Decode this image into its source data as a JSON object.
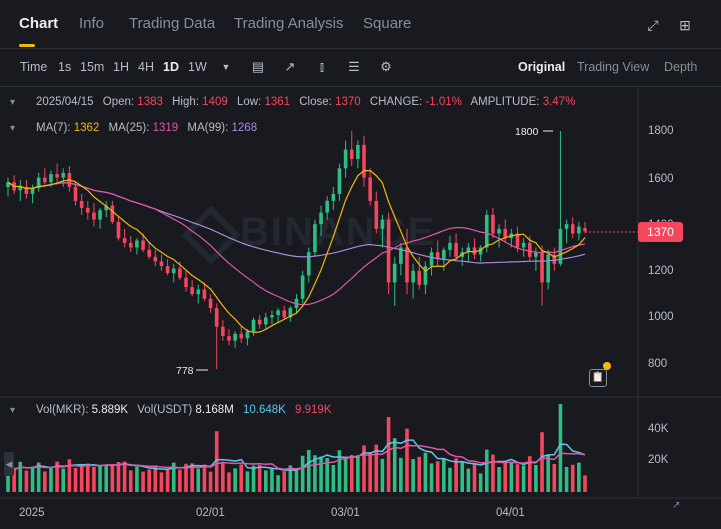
{
  "tabs": [
    {
      "label": "Chart",
      "active": true
    },
    {
      "label": "Info"
    },
    {
      "label": "Trading Data"
    },
    {
      "label": "Trading Analysis"
    },
    {
      "label": "Square"
    }
  ],
  "tab_icons": [
    "expand-icon",
    "grid-icon"
  ],
  "toolbar": {
    "time_label": "Time",
    "intervals": [
      "1s",
      "15m",
      "1H",
      "4H",
      "1D",
      "1W"
    ],
    "active_interval": "1D",
    "views": [
      "Original",
      "Trading View",
      "Depth"
    ],
    "active_view": "Original"
  },
  "ohlc": {
    "date": "2025/04/15",
    "open_label": "Open:",
    "open": "1383",
    "high_label": "High:",
    "high": "1409",
    "low_label": "Low:",
    "low": "1361",
    "close_label": "Close:",
    "close": "1370",
    "change_label": "CHANGE:",
    "change": "-1.01%",
    "amplitude_label": "AMPLITUDE:",
    "amplitude": "3.47%"
  },
  "ma": {
    "ma7_label": "MA(7):",
    "ma7": "1362",
    "ma25_label": "MA(25):",
    "ma25": "1319",
    "ma99_label": "MA(99):",
    "ma99": "1268"
  },
  "volume": {
    "label": "Vol(MKR):",
    "value": "5.889K",
    "usdt_label": "Vol(USDT)",
    "usdt": "8.168M",
    "ma1": "10.648K",
    "ma2": "9.919K"
  },
  "watermark": "BINANCE",
  "price_axis": [
    "1800",
    "1600",
    "1400",
    "1200",
    "1000",
    "800"
  ],
  "volume_axis": [
    "40K",
    "20K"
  ],
  "date_axis": [
    "2025",
    "02/01",
    "03/01",
    "04/01"
  ],
  "current_price": "1370",
  "high_marker": "1800",
  "low_marker": "778",
  "colors": {
    "up": "#2ebd85",
    "down": "#f6465d",
    "ma7": "#f0b90b",
    "ma25": "#e056a8",
    "ma99": "#a78bdc"
  },
  "chart_data": {
    "type": "candlestick",
    "price_range": [
      700,
      1900
    ],
    "ohlc_series": [
      [
        1560,
        1600,
        1520,
        1580
      ],
      [
        1580,
        1610,
        1530,
        1545
      ],
      [
        1545,
        1590,
        1500,
        1560
      ],
      [
        1560,
        1590,
        1510,
        1530
      ],
      [
        1530,
        1570,
        1490,
        1555
      ],
      [
        1555,
        1620,
        1540,
        1600
      ],
      [
        1600,
        1640,
        1570,
        1580
      ],
      [
        1580,
        1630,
        1560,
        1615
      ],
      [
        1615,
        1660,
        1580,
        1600
      ],
      [
        1600,
        1640,
        1560,
        1620
      ],
      [
        1620,
        1650,
        1540,
        1560
      ],
      [
        1560,
        1580,
        1480,
        1500
      ],
      [
        1500,
        1530,
        1440,
        1470
      ],
      [
        1470,
        1500,
        1420,
        1450
      ],
      [
        1450,
        1490,
        1390,
        1420
      ],
      [
        1420,
        1470,
        1380,
        1460
      ],
      [
        1460,
        1500,
        1430,
        1480
      ],
      [
        1480,
        1500,
        1400,
        1410
      ],
      [
        1410,
        1430,
        1330,
        1340
      ],
      [
        1340,
        1380,
        1300,
        1320
      ],
      [
        1320,
        1350,
        1280,
        1300
      ],
      [
        1300,
        1340,
        1270,
        1330
      ],
      [
        1330,
        1360,
        1280,
        1290
      ],
      [
        1290,
        1320,
        1250,
        1260
      ],
      [
        1260,
        1290,
        1220,
        1240
      ],
      [
        1240,
        1270,
        1200,
        1220
      ],
      [
        1220,
        1250,
        1180,
        1190
      ],
      [
        1190,
        1230,
        1150,
        1210
      ],
      [
        1210,
        1240,
        1160,
        1170
      ],
      [
        1170,
        1200,
        1110,
        1130
      ],
      [
        1130,
        1160,
        1090,
        1100
      ],
      [
        1100,
        1140,
        1060,
        1120
      ],
      [
        1120,
        1150,
        1070,
        1080
      ],
      [
        1080,
        1100,
        1020,
        1040
      ],
      [
        1040,
        1060,
        778,
        960
      ],
      [
        960,
        990,
        900,
        920
      ],
      [
        920,
        950,
        880,
        900
      ],
      [
        900,
        940,
        870,
        930
      ],
      [
        930,
        960,
        890,
        910
      ],
      [
        910,
        950,
        880,
        940
      ],
      [
        940,
        1000,
        920,
        990
      ],
      [
        990,
        1010,
        950,
        970
      ],
      [
        970,
        1020,
        950,
        1000
      ],
      [
        1000,
        1030,
        970,
        1010
      ],
      [
        1010,
        1040,
        980,
        1030
      ],
      [
        1030,
        1050,
        990,
        1000
      ],
      [
        1000,
        1050,
        980,
        1040
      ],
      [
        1040,
        1100,
        1020,
        1080
      ],
      [
        1080,
        1200,
        1060,
        1180
      ],
      [
        1180,
        1300,
        1150,
        1280
      ],
      [
        1280,
        1420,
        1260,
        1400
      ],
      [
        1400,
        1480,
        1350,
        1450
      ],
      [
        1450,
        1520,
        1420,
        1500
      ],
      [
        1500,
        1560,
        1460,
        1530
      ],
      [
        1530,
        1660,
        1500,
        1640
      ],
      [
        1640,
        1760,
        1600,
        1720
      ],
      [
        1720,
        1800,
        1650,
        1680
      ],
      [
        1680,
        1760,
        1640,
        1740
      ],
      [
        1740,
        1780,
        1560,
        1600
      ],
      [
        1600,
        1640,
        1480,
        1500
      ],
      [
        1500,
        1540,
        1360,
        1380
      ],
      [
        1380,
        1440,
        1300,
        1420
      ],
      [
        1420,
        1450,
        1100,
        1150
      ],
      [
        1150,
        1260,
        1050,
        1230
      ],
      [
        1230,
        1320,
        1180,
        1300
      ],
      [
        1300,
        1380,
        1100,
        1150
      ],
      [
        1150,
        1230,
        1080,
        1200
      ],
      [
        1200,
        1260,
        1120,
        1140
      ],
      [
        1140,
        1240,
        1100,
        1220
      ],
      [
        1220,
        1300,
        1180,
        1280
      ],
      [
        1280,
        1330,
        1220,
        1250
      ],
      [
        1250,
        1300,
        1200,
        1290
      ],
      [
        1290,
        1350,
        1260,
        1320
      ],
      [
        1320,
        1360,
        1240,
        1260
      ],
      [
        1260,
        1300,
        1220,
        1280
      ],
      [
        1280,
        1320,
        1240,
        1300
      ],
      [
        1300,
        1340,
        1250,
        1270
      ],
      [
        1270,
        1310,
        1240,
        1300
      ],
      [
        1300,
        1460,
        1280,
        1440
      ],
      [
        1440,
        1470,
        1340,
        1360
      ],
      [
        1360,
        1400,
        1300,
        1380
      ],
      [
        1380,
        1420,
        1320,
        1340
      ],
      [
        1340,
        1380,
        1300,
        1360
      ],
      [
        1360,
        1390,
        1280,
        1300
      ],
      [
        1300,
        1340,
        1260,
        1320
      ],
      [
        1320,
        1350,
        1240,
        1260
      ],
      [
        1260,
        1300,
        1200,
        1280
      ],
      [
        1280,
        1310,
        1050,
        1150
      ],
      [
        1150,
        1290,
        1120,
        1270
      ],
      [
        1270,
        1300,
        1200,
        1230
      ],
      [
        1230,
        1800,
        1220,
        1380
      ],
      [
        1380,
        1420,
        1320,
        1400
      ],
      [
        1400,
        1430,
        1340,
        1360
      ],
      [
        1360,
        1410,
        1330,
        1390
      ],
      [
        1383,
        1409,
        1361,
        1370
      ]
    ],
    "ma7": "line",
    "ma25": "line",
    "ma99": "line"
  }
}
